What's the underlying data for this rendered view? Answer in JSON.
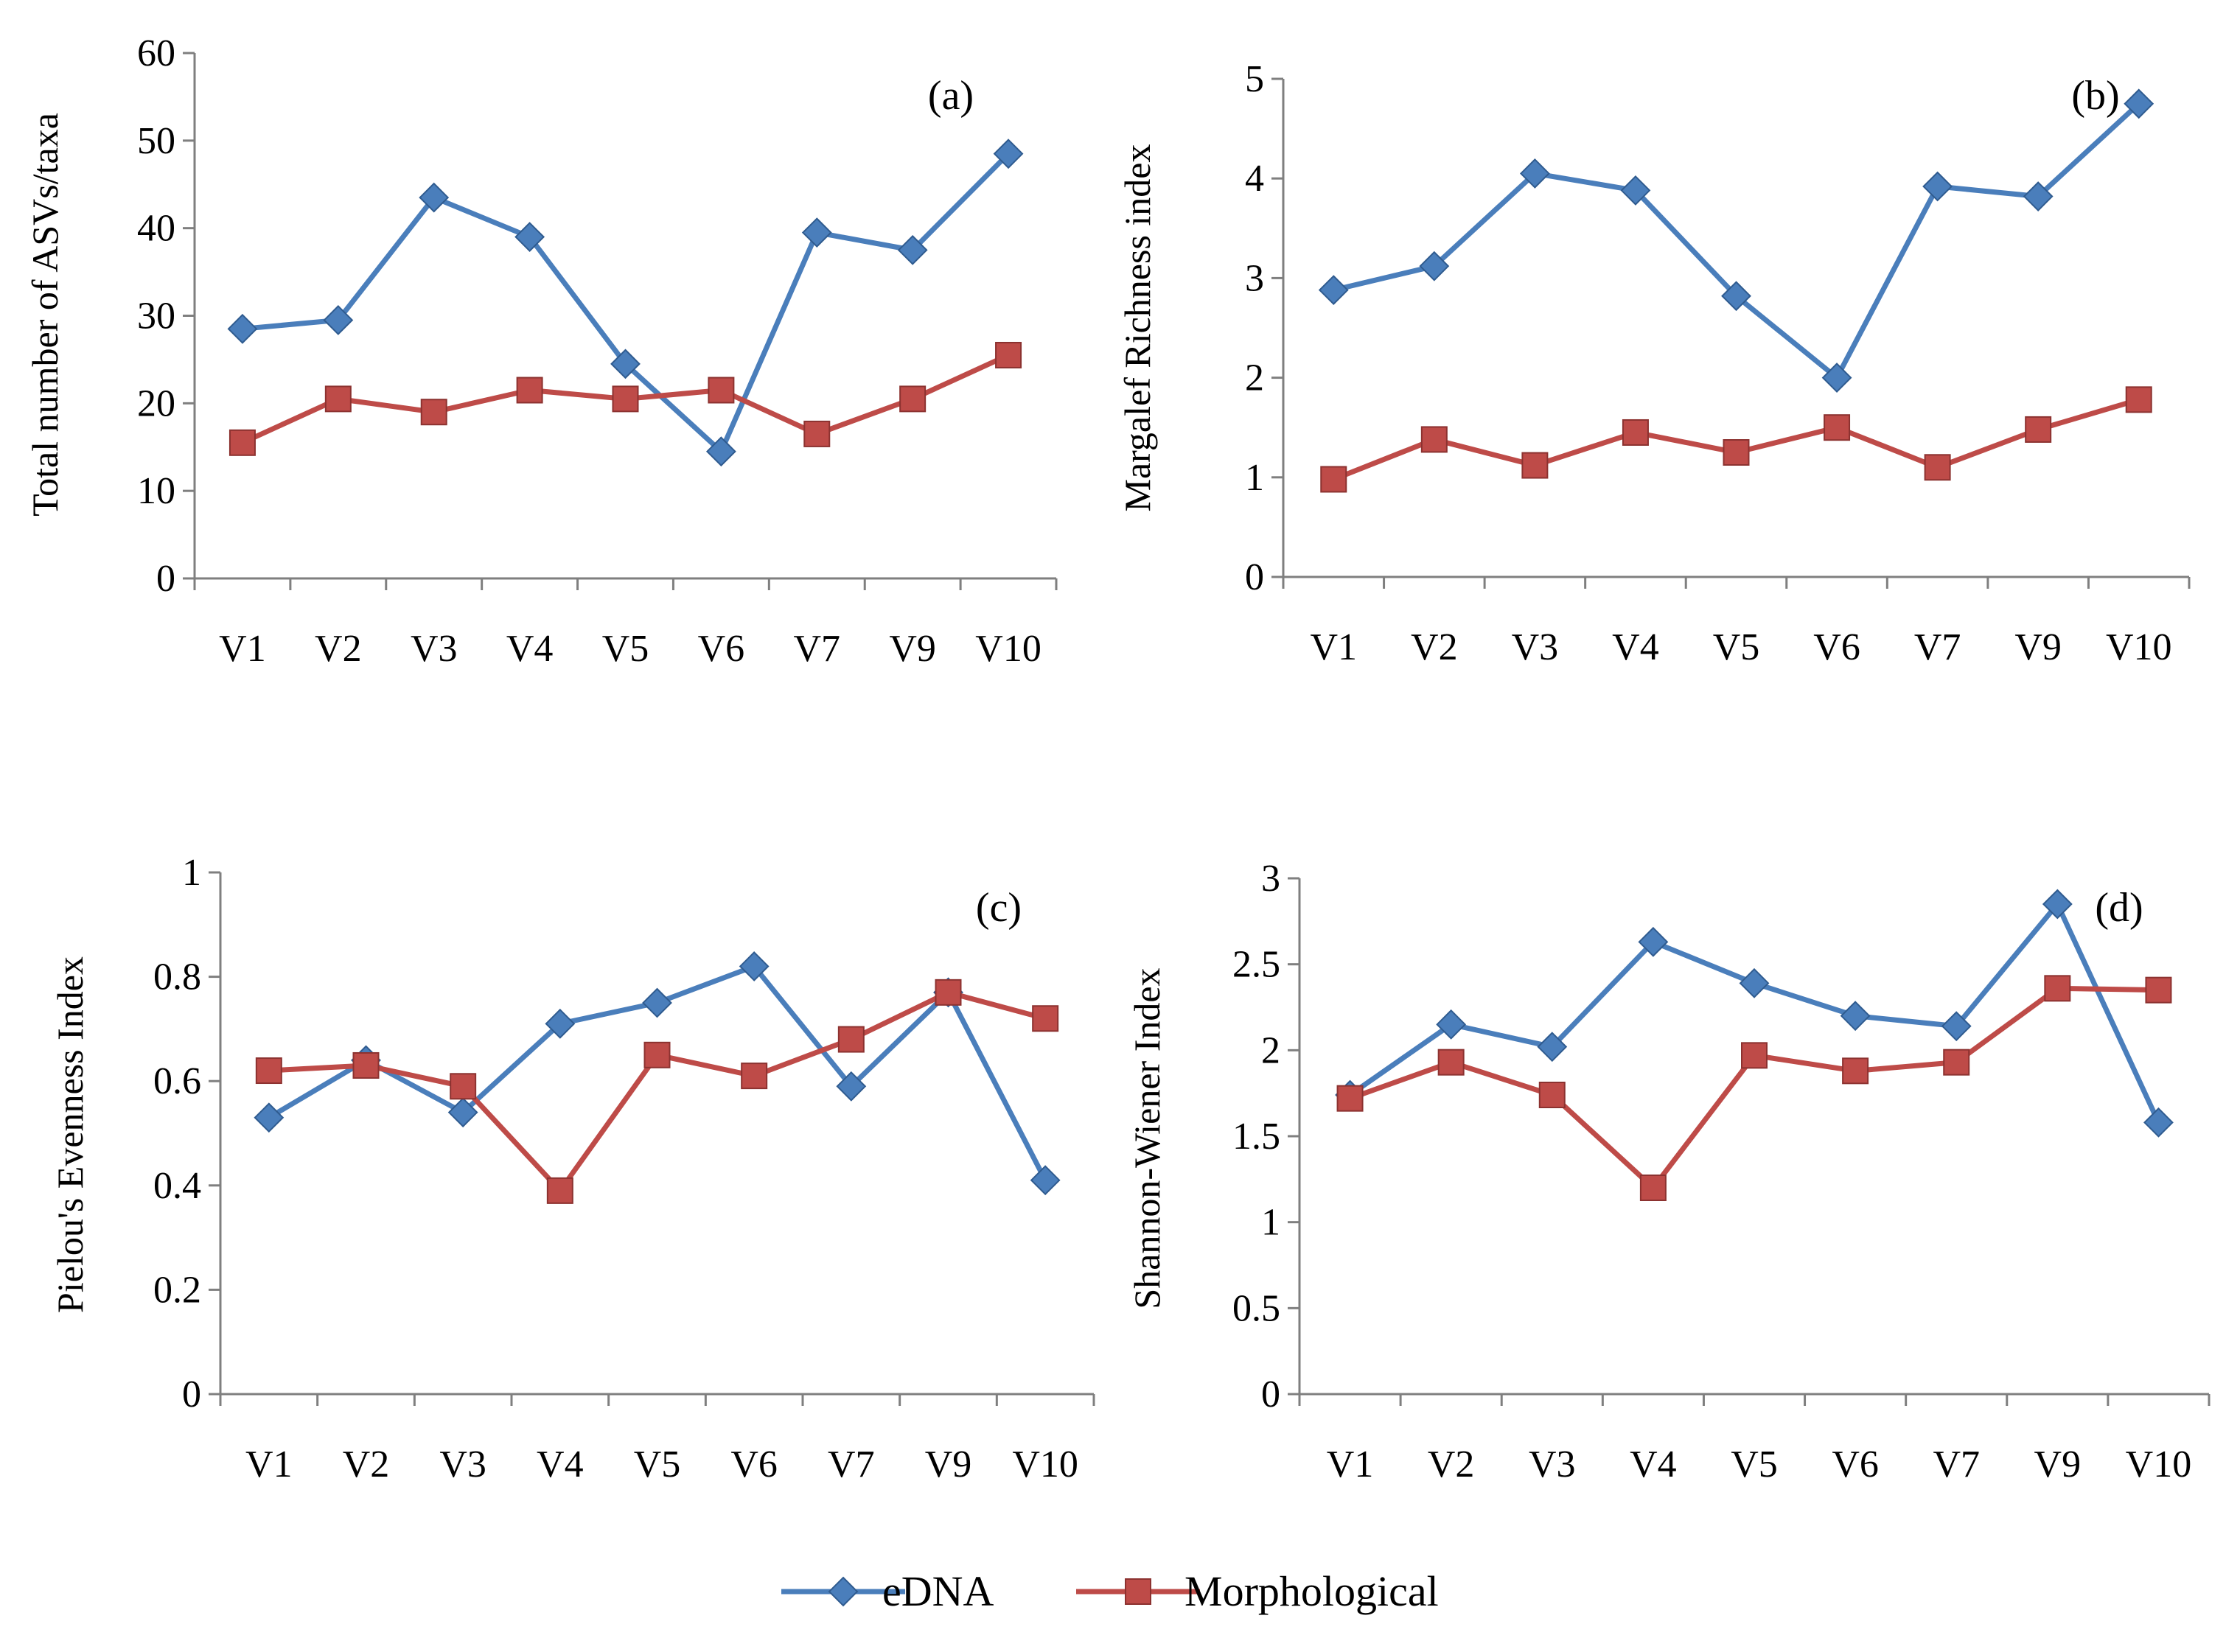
{
  "legend": {
    "entries": [
      {
        "name": "eDNA",
        "color": "#4a7ebb",
        "marker": "diamond"
      },
      {
        "name": "Morphological",
        "color": "#be4b48",
        "marker": "square"
      }
    ],
    "position": "bottom-center"
  },
  "chart_data": [
    {
      "type": "line",
      "panel_label": "(a)",
      "ylabel": "Total number of ASVs/taxa",
      "categories": [
        "V1",
        "V2",
        "V3",
        "V4",
        "V5",
        "V6",
        "V7",
        "V9",
        "V10"
      ],
      "ylim": [
        0,
        60
      ],
      "yticks": [
        "0",
        "10",
        "20",
        "30",
        "40",
        "50",
        "60"
      ],
      "series": [
        {
          "name": "eDNA",
          "values": [
            28.5,
            29.5,
            43.5,
            39,
            24.5,
            14.5,
            39.5,
            37.5,
            48.5
          ]
        },
        {
          "name": "Morphological",
          "values": [
            15.5,
            20.5,
            19,
            21.5,
            20.5,
            21.5,
            16.5,
            20.5,
            25.5
          ]
        }
      ]
    },
    {
      "type": "line",
      "panel_label": "(b)",
      "ylabel": "Margalef Richness index",
      "categories": [
        "V1",
        "V2",
        "V3",
        "V4",
        "V5",
        "V6",
        "V7",
        "V9",
        "V10"
      ],
      "ylim": [
        0,
        5
      ],
      "yticks": [
        "0",
        "1",
        "2",
        "3",
        "4",
        "5"
      ],
      "series": [
        {
          "name": "eDNA",
          "values": [
            2.88,
            3.12,
            4.05,
            3.88,
            2.82,
            2.0,
            3.92,
            3.82,
            4.75
          ]
        },
        {
          "name": "Morphological",
          "values": [
            0.98,
            1.38,
            1.12,
            1.45,
            1.25,
            1.5,
            1.1,
            1.48,
            1.78
          ]
        }
      ]
    },
    {
      "type": "line",
      "panel_label": "(c)",
      "ylabel": "Pielou's Evenness Index",
      "categories": [
        "V1",
        "V2",
        "V3",
        "V4",
        "V5",
        "V6",
        "V7",
        "V9",
        "V10"
      ],
      "ylim": [
        0,
        1
      ],
      "yticks": [
        "0",
        "0.2",
        "0.4",
        "0.6",
        "0.8",
        "1"
      ],
      "series": [
        {
          "name": "eDNA",
          "values": [
            0.53,
            0.64,
            0.54,
            0.71,
            0.75,
            0.82,
            0.59,
            0.77,
            0.41
          ]
        },
        {
          "name": "Morphological",
          "values": [
            0.62,
            0.63,
            0.59,
            0.39,
            0.65,
            0.61,
            0.68,
            0.77,
            0.72
          ]
        }
      ]
    },
    {
      "type": "line",
      "panel_label": "(d)",
      "ylabel": "Shannon-Wiener Index",
      "categories": [
        "V1",
        "V2",
        "V3",
        "V4",
        "V5",
        "V6",
        "V7",
        "V9",
        "V10"
      ],
      "ylim": [
        0,
        3
      ],
      "yticks": [
        "0",
        "0.5",
        "1",
        "1.5",
        "2",
        "2.5",
        "3"
      ],
      "series": [
        {
          "name": "eDNA",
          "values": [
            1.74,
            2.15,
            2.02,
            2.63,
            2.39,
            2.2,
            2.14,
            2.85,
            1.58
          ]
        },
        {
          "name": "Morphological",
          "values": [
            1.72,
            1.93,
            1.74,
            1.2,
            1.97,
            1.88,
            1.93,
            2.36,
            2.35
          ]
        }
      ]
    }
  ]
}
